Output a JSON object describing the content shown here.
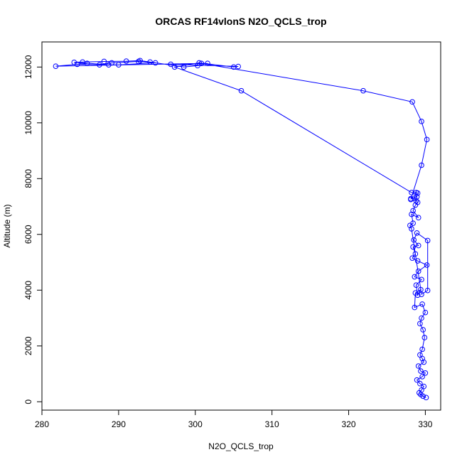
{
  "chart_data": {
    "type": "line",
    "title": "ORCAS RF14vlonS N2O_QCLS_trop",
    "xlabel": "N2O_QCLS_trop",
    "ylabel": "Altitude (m)",
    "xlim": [
      280,
      332
    ],
    "ylim": [
      -300,
      12900
    ],
    "x_ticks": [
      280,
      290,
      300,
      310,
      320,
      330
    ],
    "y_ticks": [
      0,
      2000,
      4000,
      6000,
      8000,
      10000,
      12000
    ],
    "grid": false,
    "legend": "none",
    "marker": "open-circle",
    "color": "#0000ff",
    "series": [
      {
        "points": [
          [
            330.1,
            150
          ],
          [
            329.7,
            200
          ],
          [
            329.4,
            260
          ],
          [
            329.2,
            320
          ],
          [
            329.5,
            420
          ],
          [
            329.8,
            550
          ],
          [
            329.3,
            650
          ],
          [
            328.9,
            780
          ],
          [
            329.6,
            900
          ],
          [
            330.0,
            1030
          ],
          [
            329.4,
            1100
          ],
          [
            329.1,
            1280
          ],
          [
            329.8,
            1420
          ],
          [
            329.6,
            1550
          ],
          [
            329.3,
            1680
          ],
          [
            329.6,
            1880
          ],
          [
            329.9,
            2300
          ],
          [
            329.7,
            2580
          ],
          [
            329.3,
            2800
          ],
          [
            329.5,
            3000
          ],
          [
            330.0,
            3200
          ],
          [
            329.6,
            3500
          ],
          [
            328.6,
            3380
          ],
          [
            328.7,
            3900
          ],
          [
            329.4,
            4020
          ],
          [
            329.0,
            3820
          ],
          [
            328.8,
            4180
          ],
          [
            329.5,
            4380
          ],
          [
            328.6,
            4480
          ],
          [
            329.1,
            4680
          ],
          [
            330.2,
            4900
          ],
          [
            329.0,
            5050
          ],
          [
            328.3,
            5150
          ],
          [
            328.7,
            5300
          ],
          [
            328.4,
            5550
          ],
          [
            329.1,
            5600
          ],
          [
            328.5,
            5800
          ],
          [
            328.9,
            6050
          ],
          [
            330.3,
            5780
          ],
          [
            330.3,
            3990
          ],
          [
            329.5,
            3850
          ],
          [
            328.2,
            6200
          ],
          [
            328.0,
            6320
          ],
          [
            328.4,
            6400
          ],
          [
            328.2,
            6720
          ],
          [
            329.1,
            6600
          ],
          [
            328.4,
            6850
          ],
          [
            328.7,
            7050
          ],
          [
            329.0,
            7150
          ],
          [
            328.8,
            7200
          ],
          [
            328.6,
            7300
          ],
          [
            328.1,
            7280
          ],
          [
            328.9,
            7350
          ],
          [
            328.8,
            7500
          ],
          [
            329.0,
            7480
          ],
          [
            328.2,
            7500
          ],
          [
            306.0,
            11150
          ],
          [
            297.3,
            12000
          ],
          [
            300.5,
            12150
          ],
          [
            305.0,
            12000
          ],
          [
            305.6,
            12020
          ],
          [
            296.8,
            12100
          ],
          [
            301.6,
            12130
          ],
          [
            300.3,
            12050
          ],
          [
            298.5,
            12000
          ],
          [
            294.1,
            12180
          ],
          [
            292.8,
            12230
          ],
          [
            291.0,
            12210
          ],
          [
            288.1,
            12200
          ],
          [
            285.3,
            12180
          ],
          [
            284.2,
            12170
          ],
          [
            288.7,
            12080
          ],
          [
            290.0,
            12080
          ],
          [
            294.8,
            12150
          ],
          [
            292.6,
            12200
          ],
          [
            289.1,
            12150
          ],
          [
            287.5,
            12080
          ],
          [
            284.6,
            12100
          ],
          [
            285.9,
            12130
          ],
          [
            281.8,
            12030
          ],
          [
            300.8,
            12130
          ],
          [
            321.9,
            11150
          ],
          [
            328.3,
            10750
          ],
          [
            329.5,
            10050
          ],
          [
            330.2,
            9400
          ],
          [
            329.5,
            8480
          ],
          [
            328.1,
            7250
          ]
        ]
      }
    ]
  }
}
